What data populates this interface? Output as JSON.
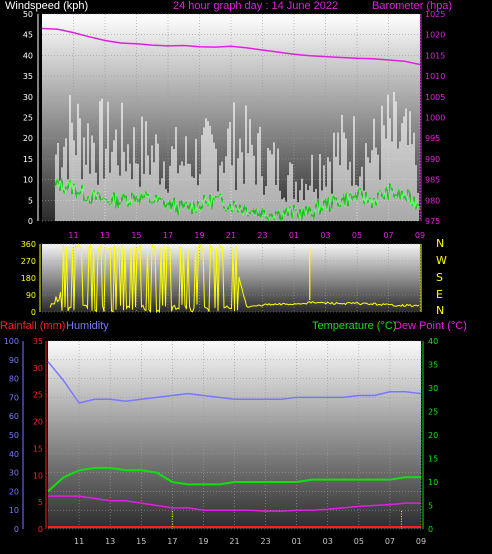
{
  "chart_data": [
    {
      "type": "line",
      "title": "24 hour graph day : 14 June 2022",
      "ylabel_left": "Windspeed (kph)",
      "ylabel_right": "Barometer (hpa)",
      "x_ticks": [
        "11",
        "13",
        "15",
        "17",
        "19",
        "21",
        "23",
        "01",
        "03",
        "05",
        "07",
        "09"
      ],
      "ylim_left": [
        0,
        50
      ],
      "ylim_right": [
        975,
        1025
      ],
      "y_ticks_left": [
        0,
        5,
        10,
        15,
        20,
        25,
        30,
        35,
        40,
        45,
        50
      ],
      "y_ticks_right": [
        975,
        980,
        985,
        990,
        995,
        1000,
        1005,
        1010,
        1015,
        1020,
        1025
      ],
      "series": [
        {
          "name": "Barometer (hpa)",
          "color": "#e020e0",
          "x": [
            9,
            10,
            11,
            12,
            13,
            14,
            15,
            16,
            17,
            18,
            19,
            20,
            21,
            22,
            23,
            24,
            25,
            26,
            27,
            28,
            29,
            30,
            31,
            32,
            33
          ],
          "values": [
            1021.5,
            1021.3,
            1020.5,
            1019.5,
            1018.6,
            1018.0,
            1017.8,
            1017.5,
            1017.3,
            1017.4,
            1017.1,
            1017.0,
            1017.2,
            1016.8,
            1016.3,
            1015.8,
            1015.3,
            1014.9,
            1014.7,
            1014.5,
            1014.3,
            1014.2,
            1013.9,
            1013.6,
            1012.8
          ]
        },
        {
          "name": "Wind gust (kph)",
          "color": "#ffffff",
          "x": [
            9,
            10,
            11,
            12,
            13,
            14,
            15,
            16,
            17,
            18,
            19,
            20,
            21,
            22,
            23,
            24,
            25,
            26,
            27,
            28,
            29,
            30,
            31,
            32,
            33
          ],
          "values": [
            10,
            28,
            35,
            31,
            30,
            29,
            27,
            26,
            24,
            23,
            25,
            26,
            30,
            28,
            24,
            20,
            15,
            18,
            25,
            27,
            28,
            26,
            33,
            30,
            21
          ]
        },
        {
          "name": "Wind speed (kph)",
          "color": "#10e010",
          "x": [
            9,
            10,
            11,
            12,
            13,
            14,
            15,
            16,
            17,
            18,
            19,
            20,
            21,
            22,
            23,
            24,
            25,
            26,
            27,
            28,
            29,
            30,
            31,
            32,
            33
          ],
          "values": [
            3,
            9,
            8,
            6,
            5,
            5,
            6,
            5,
            4,
            3,
            4,
            5,
            4,
            3,
            2,
            2,
            2,
            2,
            4,
            5,
            6,
            5,
            7,
            6,
            4
          ]
        }
      ]
    },
    {
      "type": "scatter",
      "ylabel_right_letters": [
        "N",
        "W",
        "S",
        "E",
        "N"
      ],
      "ylim": [
        0,
        360
      ],
      "y_ticks": [
        0,
        90,
        180,
        270,
        360
      ],
      "series": [
        {
          "name": "Wind direction",
          "color": "#ffff00",
          "x": [
            9,
            9.5,
            10,
            10.5,
            11,
            11.5,
            12,
            12.5,
            13,
            13.5,
            14,
            14.5,
            15,
            15.5,
            16,
            16.5,
            17,
            17.5,
            18,
            18.5,
            19,
            19.5,
            20,
            20.5,
            21,
            21.5,
            22,
            22.5,
            23,
            24,
            25,
            26,
            27,
            28,
            29,
            30,
            31,
            32,
            33
          ],
          "values": [
            100,
            60,
            40,
            330,
            350,
            20,
            340,
            350,
            10,
            345,
            350,
            5,
            340,
            355,
            350,
            20,
            345,
            350,
            10,
            30,
            340,
            20,
            350,
            15,
            30,
            340,
            10,
            20,
            35,
            40,
            45,
            60,
            55,
            50,
            50,
            45,
            35,
            30,
            25
          ]
        }
      ]
    },
    {
      "type": "line",
      "ylabel_left_1": "Rainfall (mm)",
      "ylabel_left_2": "Humidity",
      "ylabel_right_1": "Temperature (°C)",
      "ylabel_right_2": "Dew Point (°C)",
      "ylim_humidity": [
        0,
        100
      ],
      "ylim_rain": [
        0,
        35
      ],
      "ylim_temp": [
        0,
        40
      ],
      "y_ticks_humidity": [
        0,
        10,
        20,
        30,
        40,
        50,
        60,
        70,
        80,
        90,
        100
      ],
      "y_ticks_rain": [
        0,
        5,
        10,
        15,
        20,
        25,
        30,
        35
      ],
      "y_ticks_temp": [
        0,
        5,
        10,
        15,
        20,
        25,
        30,
        35,
        40
      ],
      "series": [
        {
          "name": "Humidity",
          "color": "#7878ff",
          "x": [
            9,
            10,
            11,
            12,
            13,
            14,
            15,
            16,
            17,
            18,
            19,
            20,
            21,
            22,
            23,
            24,
            25,
            26,
            27,
            28,
            29,
            30,
            31,
            32,
            33
          ],
          "values": [
            89,
            79,
            67,
            69,
            69,
            68,
            69,
            70,
            71,
            72,
            71,
            70,
            69,
            69,
            69,
            69,
            70,
            70,
            70,
            70,
            71,
            71,
            73,
            73,
            72
          ]
        },
        {
          "name": "Temperature (°C)",
          "color": "#10e010",
          "x": [
            9,
            10,
            11,
            12,
            13,
            14,
            15,
            16,
            17,
            18,
            19,
            20,
            21,
            22,
            23,
            24,
            25,
            26,
            27,
            28,
            29,
            30,
            31,
            32,
            33
          ],
          "values": [
            8,
            11,
            12.5,
            13,
            13,
            12.5,
            12.5,
            12,
            10,
            9.5,
            9.5,
            9.5,
            10,
            10,
            10,
            10,
            10,
            10.5,
            10.5,
            10.5,
            10.5,
            10.5,
            10.5,
            11,
            11
          ]
        },
        {
          "name": "Dew Point (°C)",
          "color": "#e020e0",
          "x": [
            9,
            10,
            11,
            12,
            13,
            14,
            15,
            16,
            17,
            18,
            19,
            20,
            21,
            22,
            23,
            24,
            25,
            26,
            27,
            28,
            29,
            30,
            31,
            32,
            33
          ],
          "values": [
            7,
            7,
            7,
            6.5,
            6,
            6,
            5.5,
            5,
            4.5,
            4.5,
            4,
            4,
            4,
            4,
            3.8,
            3.8,
            4,
            4,
            4.2,
            4.5,
            4.8,
            5,
            5.2,
            5.5,
            5.5
          ]
        },
        {
          "name": "Rainfall (mm)",
          "color": "#ff2020",
          "x": [
            9,
            33
          ],
          "values": [
            0,
            0
          ]
        }
      ]
    }
  ]
}
